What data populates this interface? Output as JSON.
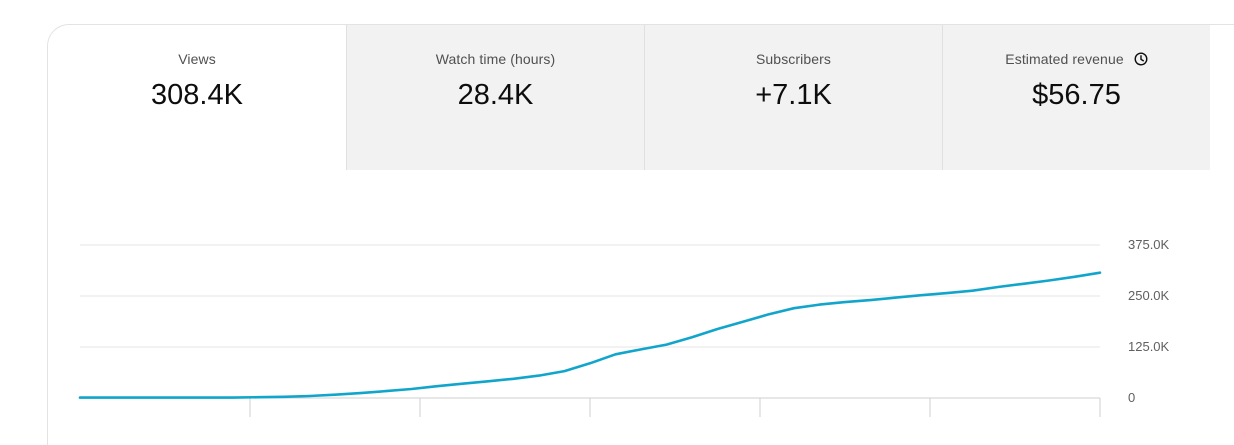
{
  "metrics": [
    {
      "label": "Views",
      "value": "308.4K"
    },
    {
      "label": "Watch time (hours)",
      "value": "28.4K"
    },
    {
      "label": "Subscribers",
      "value": "+7.1K"
    },
    {
      "label": "Estimated revenue",
      "value": "$56.75"
    }
  ],
  "colors": {
    "line": "#12a5cc",
    "grid": "#e6e6e6",
    "axis": "#cfcfcf",
    "tab_inactive_bg": "#f2f2f2"
  },
  "icons": {
    "revenue_info": "clock-icon"
  },
  "chart_data": {
    "type": "line",
    "title": "",
    "xlabel": "",
    "ylabel": "",
    "ylim": [
      0,
      375000
    ],
    "y_tick_labels": [
      "0",
      "125.0K",
      "250.0K",
      "375.0K"
    ],
    "y_tick_values": [
      0,
      125000,
      250000,
      375000
    ],
    "grid": true,
    "x": [
      0,
      1,
      2,
      3,
      4,
      5,
      6,
      7,
      8,
      9,
      10,
      11,
      12,
      13,
      14,
      15,
      16,
      17,
      18,
      19,
      20,
      21,
      22,
      23,
      24,
      25,
      26,
      27,
      28,
      29,
      30,
      31,
      32,
      33,
      34,
      35,
      36,
      37,
      38,
      39,
      40
    ],
    "series": [
      {
        "values": [
          1000,
          1000,
          1000,
          1000,
          1000,
          1000,
          1000,
          2000,
          3000,
          5000,
          8000,
          12000,
          17000,
          22000,
          29000,
          35000,
          41000,
          47000,
          55000,
          66000,
          85000,
          107000,
          119000,
          131000,
          149000,
          169000,
          187000,
          205000,
          220000,
          229000,
          235000,
          240000,
          246000,
          252000,
          257000,
          263000,
          272000,
          280000,
          288000,
          297000,
          307000
        ]
      }
    ]
  }
}
